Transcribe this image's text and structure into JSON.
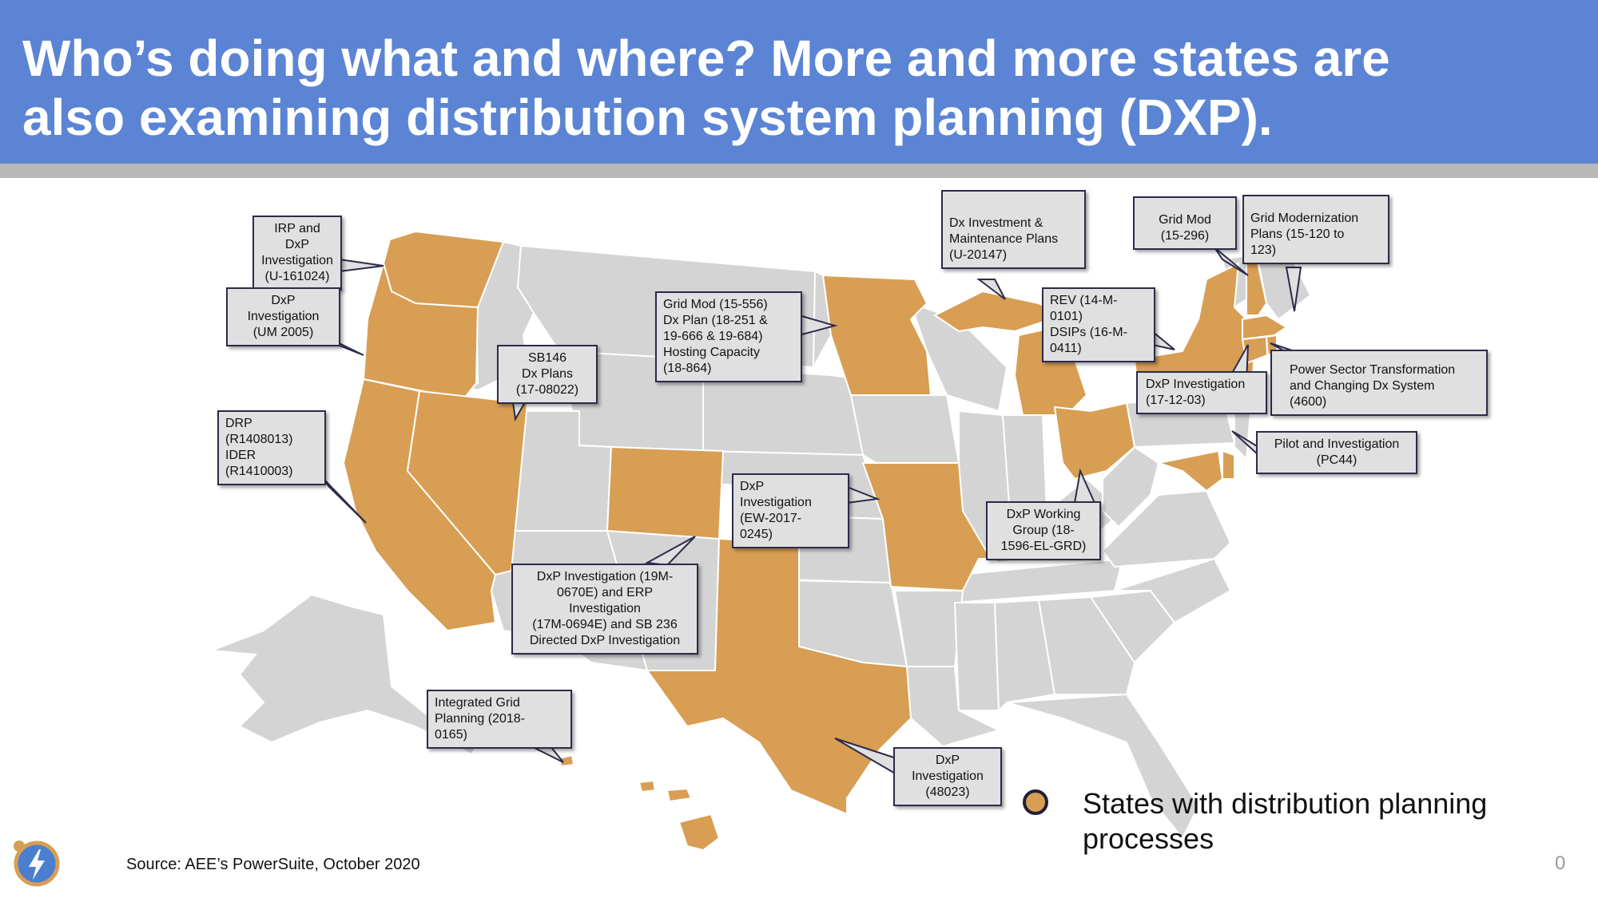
{
  "title": {
    "line1": "Who’s doing what and where? More and more states are",
    "line2": "also examining distribution system planning (DXP)."
  },
  "colors": {
    "header": "#5b84d4",
    "dxp_state": "#d89e53",
    "other_state": "#d4d4d4",
    "callout_bg": "#e0e0e0",
    "callout_border": "#2b2b4a"
  },
  "map": {
    "highlighted_states": [
      "WA",
      "OR",
      "CA",
      "NV",
      "CO",
      "TX",
      "MN",
      "MO",
      "MI",
      "OH",
      "NY",
      "NH",
      "MA",
      "CT",
      "RI",
      "MD",
      "DC",
      "DE",
      "HI"
    ],
    "callouts": {
      "wa": [
        "IRP and DxP",
        "Investigation",
        "(U-161024)"
      ],
      "or": [
        "DxP",
        "Investigation",
        "(UM 2005)"
      ],
      "ca": [
        "DRP",
        "(R1408013)",
        "IDER",
        "(R1410003)"
      ],
      "nv": [
        "SB146",
        "Dx Plans",
        "(17-08022)"
      ],
      "mn": [
        "Grid Mod (15-556)",
        "Dx Plan (18-251 &",
        "19-666 & 19-684)",
        "Hosting Capacity",
        "(18-864)"
      ],
      "co": [
        "DxP Investigation (19M-",
        "0670E) and ERP",
        "Investigation",
        "(17M-0694E) and SB 236",
        "Directed DxP Investigation"
      ],
      "mo": [
        "DxP",
        "Investigation",
        "(EW-2017-",
        "0245)"
      ],
      "hi": [
        "Integrated Grid",
        "Planning (2018-",
        "0165)"
      ],
      "tx": [
        "DxP",
        "Investigation",
        "(48023)"
      ],
      "mi": [
        "Dx Investment &",
        "Maintenance Plans",
        "(U-20147)"
      ],
      "ny": [
        "REV (14-M-",
        "0101)",
        "DSIPs (16-M-",
        "0411)"
      ],
      "nh": [
        "Grid Mod",
        "(15-296)"
      ],
      "ma": [
        "Grid Modernization",
        "Plans (15-120 to",
        "123)"
      ],
      "ri": [
        "Power Sector Transformation",
        "and Changing Dx System",
        "(4600)"
      ],
      "dc": [
        "DxP Investigation",
        "(17-12-03)"
      ],
      "md": [
        "Pilot and Investigation",
        "(PC44)"
      ],
      "oh": [
        "DxP Working",
        "Group (18-",
        "1596-EL-GRD)"
      ]
    }
  },
  "legend": {
    "label": "States with distribution planning processes"
  },
  "source": "Source: AEE’s PowerSuite, October 2020",
  "page_number": "0",
  "logo_icon": "lightning-bolt-icon"
}
